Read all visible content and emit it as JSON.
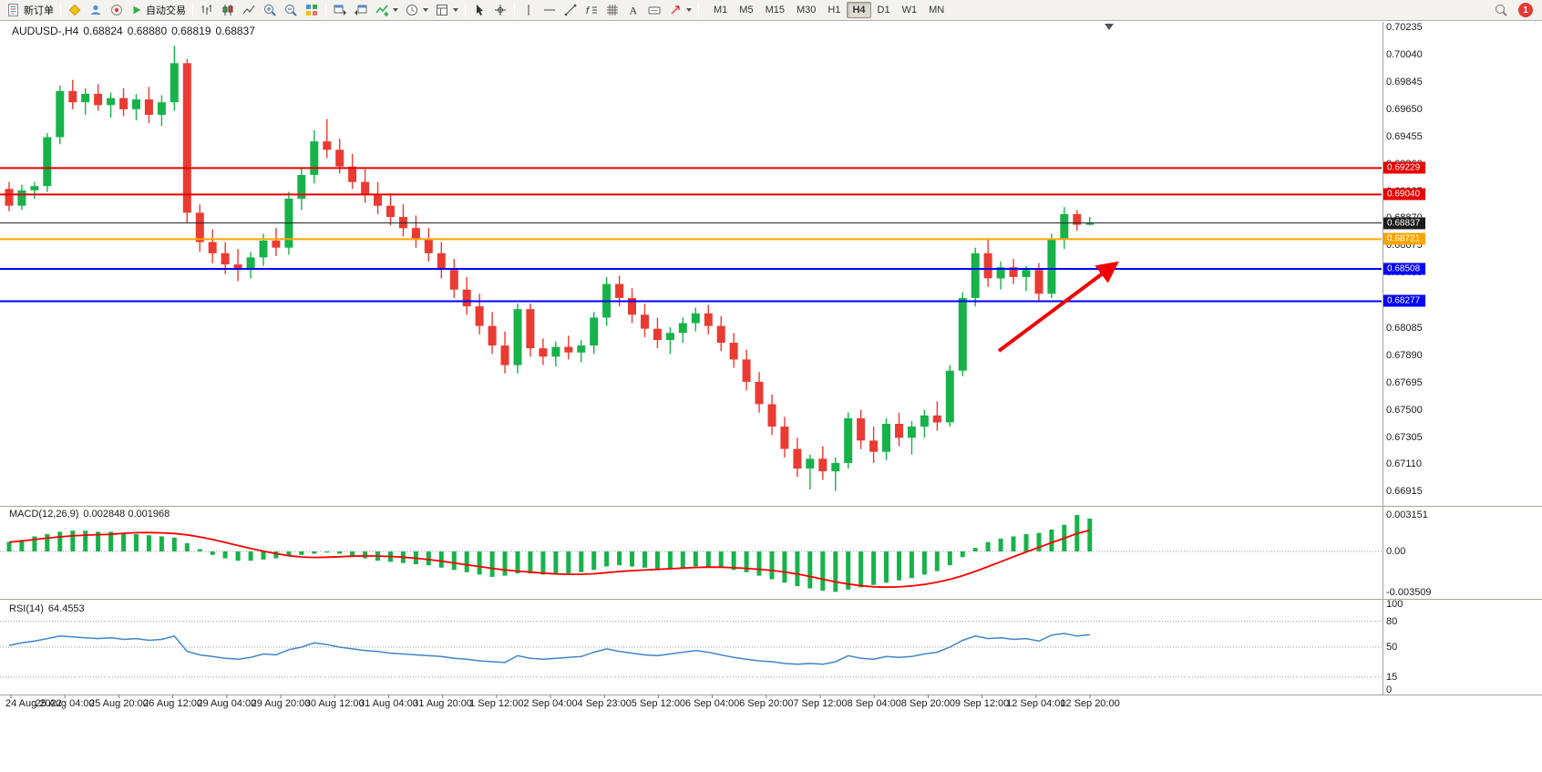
{
  "window": {
    "app_title": "MetaTrader",
    "accent_colors": {
      "bull": "#18b24b",
      "bear": "#ea3b32",
      "rsi_line": "#3f86c9",
      "macd_signal": "#ff0000",
      "macd_histogram": "#18b24b"
    }
  },
  "toolbar": {
    "new_order_label": "新订单",
    "autotrading_label": "自动交易",
    "timeframes": [
      "M1",
      "M5",
      "M15",
      "M30",
      "H1",
      "H4",
      "D1",
      "W1",
      "MN"
    ],
    "active_timeframe": "H4",
    "notification_count": "1"
  },
  "chart": {
    "header": {
      "symbol": "AUDUSD-,H4",
      "open": "0.68824",
      "high": "0.68880",
      "low": "0.68819",
      "close": "0.68837"
    },
    "price_axis_ticks": [
      "0.70235",
      "0.70040",
      "0.69845",
      "0.69650",
      "0.69455",
      "0.69260",
      "0.69065",
      "0.68870",
      "0.68675",
      "0.68480",
      "0.68285",
      "0.68085",
      "0.67890",
      "0.67695",
      "0.67500",
      "0.67305",
      "0.67110",
      "0.66915"
    ],
    "levels": [
      {
        "label": "0.69229",
        "price": 0.69229,
        "color": "#e60000",
        "kind": "resistance"
      },
      {
        "label": "0.69040",
        "price": 0.6904,
        "color": "#e60000",
        "kind": "resistance"
      },
      {
        "label": "0.68837",
        "price": 0.68837,
        "color": "#1c1c1c",
        "kind": "current-price"
      },
      {
        "label": "0.68721",
        "price": 0.68721,
        "color": "#ffa500",
        "kind": "pivot"
      },
      {
        "label": "0.68508",
        "price": 0.68508,
        "color": "#0000ff",
        "kind": "support"
      },
      {
        "label": "0.68277",
        "price": 0.68277,
        "color": "#0000ff",
        "kind": "support"
      }
    ],
    "time_axis": [
      "24 Aug 2022",
      "25 Aug 04:00",
      "25 Aug 20:00",
      "26 Aug 12:00",
      "29 Aug 04:00",
      "29 Aug 20:00",
      "30 Aug 12:00",
      "31 Aug 04:00",
      "31 Aug 20:00",
      "1 Sep 12:00",
      "2 Sep 04:00",
      "4 Sep 23:00",
      "5 Sep 12:00",
      "6 Sep 04:00",
      "6 Sep 20:00",
      "7 Sep 12:00",
      "8 Sep 04:00",
      "8 Sep 20:00",
      "9 Sep 12:00",
      "12 Sep 04:00",
      "12 Sep 20:00"
    ],
    "annotation_arrow": {
      "color": "#f00000",
      "direction": "up-right"
    }
  },
  "macd": {
    "label": "MACD(12,26,9)",
    "values": "0.002848 0.001968",
    "axis": [
      {
        "label": "0.003151",
        "value": 0.003151
      },
      {
        "label": "0.00",
        "value": 0
      },
      {
        "label": "-0.003509",
        "value": -0.003509
      }
    ]
  },
  "rsi": {
    "label": "RSI(14)",
    "value": "64.4553",
    "axis": [
      {
        "label": "100",
        "value": 100
      },
      {
        "label": "80",
        "value": 80
      },
      {
        "label": "50",
        "value": 50
      },
      {
        "label": "15",
        "value": 15
      },
      {
        "label": "0",
        "value": 0
      }
    ],
    "levels": [
      80,
      50,
      15
    ]
  },
  "chart_data": {
    "type": "candlestick",
    "symbol": "AUDUSD",
    "timeframe": "H4",
    "price_range": {
      "top": 0.70262,
      "bottom": 0.66826
    },
    "candles": [
      [
        0.6908,
        0.6913,
        0.6892,
        0.6896
      ],
      [
        0.6896,
        0.6911,
        0.6893,
        0.6907
      ],
      [
        0.6907,
        0.6913,
        0.6901,
        0.691
      ],
      [
        0.691,
        0.6948,
        0.6906,
        0.6945
      ],
      [
        0.6945,
        0.6982,
        0.694,
        0.6978
      ],
      [
        0.6978,
        0.6986,
        0.6965,
        0.697
      ],
      [
        0.697,
        0.698,
        0.6961,
        0.6976
      ],
      [
        0.6976,
        0.6983,
        0.6964,
        0.6968
      ],
      [
        0.6968,
        0.6977,
        0.6959,
        0.6973
      ],
      [
        0.6973,
        0.698,
        0.696,
        0.6965
      ],
      [
        0.6965,
        0.6976,
        0.6957,
        0.6972
      ],
      [
        0.6972,
        0.6981,
        0.6955,
        0.6961
      ],
      [
        0.6961,
        0.6975,
        0.6953,
        0.697
      ],
      [
        0.697,
        0.70103,
        0.6964,
        0.6998
      ],
      [
        0.6998,
        0.7001,
        0.6884,
        0.6891
      ],
      [
        0.6891,
        0.6897,
        0.6863,
        0.687
      ],
      [
        0.687,
        0.6879,
        0.6855,
        0.6862
      ],
      [
        0.6862,
        0.687,
        0.6847,
        0.6854
      ],
      [
        0.6854,
        0.6865,
        0.6842,
        0.685
      ],
      [
        0.685,
        0.6863,
        0.6844,
        0.6859
      ],
      [
        0.6859,
        0.6876,
        0.6853,
        0.6871
      ],
      [
        0.6871,
        0.688,
        0.686,
        0.6866
      ],
      [
        0.6866,
        0.6906,
        0.6861,
        0.6901
      ],
      [
        0.6901,
        0.6923,
        0.6893,
        0.6918
      ],
      [
        0.6918,
        0.695,
        0.6912,
        0.6942
      ],
      [
        0.6942,
        0.6958,
        0.693,
        0.6936
      ],
      [
        0.6936,
        0.6944,
        0.6919,
        0.6924
      ],
      [
        0.6924,
        0.6933,
        0.6908,
        0.6913
      ],
      [
        0.6913,
        0.6922,
        0.6898,
        0.6904
      ],
      [
        0.6904,
        0.6913,
        0.689,
        0.6896
      ],
      [
        0.6896,
        0.6905,
        0.6882,
        0.6888
      ],
      [
        0.6888,
        0.6897,
        0.6874,
        0.688
      ],
      [
        0.688,
        0.6889,
        0.6866,
        0.6872
      ],
      [
        0.6872,
        0.688,
        0.6856,
        0.6862
      ],
      [
        0.6862,
        0.687,
        0.6844,
        0.685
      ],
      [
        0.685,
        0.6858,
        0.683,
        0.6836
      ],
      [
        0.6836,
        0.6845,
        0.6818,
        0.6824
      ],
      [
        0.6824,
        0.6833,
        0.6804,
        0.681
      ],
      [
        0.681,
        0.682,
        0.679,
        0.6796
      ],
      [
        0.6796,
        0.6806,
        0.6776,
        0.6782
      ],
      [
        0.6782,
        0.6826,
        0.6776,
        0.6822
      ],
      [
        0.6822,
        0.6826,
        0.6788,
        0.6794
      ],
      [
        0.6794,
        0.6801,
        0.6782,
        0.6788
      ],
      [
        0.6788,
        0.6799,
        0.6781,
        0.6795
      ],
      [
        0.6795,
        0.6803,
        0.6786,
        0.6791
      ],
      [
        0.6791,
        0.68,
        0.6784,
        0.6796
      ],
      [
        0.6796,
        0.682,
        0.679,
        0.6816
      ],
      [
        0.6816,
        0.6845,
        0.681,
        0.684
      ],
      [
        0.684,
        0.6846,
        0.6824,
        0.683
      ],
      [
        0.683,
        0.6837,
        0.6812,
        0.6818
      ],
      [
        0.6818,
        0.6826,
        0.6802,
        0.6808
      ],
      [
        0.6808,
        0.6816,
        0.6794,
        0.68
      ],
      [
        0.68,
        0.6809,
        0.679,
        0.6805
      ],
      [
        0.6805,
        0.6816,
        0.6798,
        0.6812
      ],
      [
        0.6812,
        0.6823,
        0.6806,
        0.6819
      ],
      [
        0.6819,
        0.6825,
        0.6804,
        0.681
      ],
      [
        0.681,
        0.6817,
        0.6792,
        0.6798
      ],
      [
        0.6798,
        0.6805,
        0.678,
        0.6786
      ],
      [
        0.6786,
        0.6793,
        0.6764,
        0.677
      ],
      [
        0.677,
        0.6777,
        0.6748,
        0.6754
      ],
      [
        0.6754,
        0.6761,
        0.6732,
        0.6738
      ],
      [
        0.6738,
        0.6745,
        0.6716,
        0.6722
      ],
      [
        0.6722,
        0.673,
        0.6702,
        0.6708
      ],
      [
        0.6708,
        0.6718,
        0.6693,
        0.6715
      ],
      [
        0.6715,
        0.6724,
        0.67,
        0.6706
      ],
      [
        0.6706,
        0.6716,
        0.6692,
        0.6712
      ],
      [
        0.6712,
        0.6748,
        0.6708,
        0.6744
      ],
      [
        0.6744,
        0.675,
        0.6722,
        0.6728
      ],
      [
        0.6728,
        0.6738,
        0.6712,
        0.672
      ],
      [
        0.672,
        0.6744,
        0.6714,
        0.674
      ],
      [
        0.674,
        0.6748,
        0.6724,
        0.673
      ],
      [
        0.673,
        0.6742,
        0.6718,
        0.6738
      ],
      [
        0.6738,
        0.675,
        0.673,
        0.6746
      ],
      [
        0.6746,
        0.6756,
        0.6735,
        0.6741
      ],
      [
        0.6741,
        0.6782,
        0.6738,
        0.6778
      ],
      [
        0.6778,
        0.6834,
        0.6774,
        0.683
      ],
      [
        0.683,
        0.6866,
        0.6824,
        0.6862
      ],
      [
        0.6862,
        0.6872,
        0.6838,
        0.6844
      ],
      [
        0.6844,
        0.6856,
        0.6836,
        0.6852
      ],
      [
        0.6852,
        0.6858,
        0.684,
        0.6845
      ],
      [
        0.6845,
        0.6853,
        0.6835,
        0.685
      ],
      [
        0.685,
        0.6855,
        0.6828,
        0.6833
      ],
      [
        0.6833,
        0.6876,
        0.683,
        0.6872
      ],
      [
        0.6872,
        0.6895,
        0.6865,
        0.689
      ],
      [
        0.689,
        0.6893,
        0.6878,
        0.68824
      ],
      [
        0.68824,
        0.6888,
        0.68819,
        0.68837
      ]
    ],
    "macd_histogram": [
      0.0008,
      0.001,
      0.0013,
      0.0015,
      0.0017,
      0.0018,
      0.0018,
      0.0017,
      0.0017,
      0.0016,
      0.0015,
      0.0014,
      0.0013,
      0.0012,
      0.0007,
      0.0002,
      -0.0003,
      -0.0006,
      -0.0008,
      -0.0008,
      -0.0007,
      -0.0006,
      -0.0004,
      -0.0003,
      -0.0002,
      -0.0001,
      -0.0002,
      -0.0004,
      -0.0006,
      -0.0008,
      -0.0009,
      -0.001,
      -0.0011,
      -0.0012,
      -0.0014,
      -0.0016,
      -0.0018,
      -0.002,
      -0.0022,
      -0.0021,
      -0.0019,
      -0.0019,
      -0.002,
      -0.002,
      -0.0019,
      -0.0018,
      -0.0016,
      -0.0013,
      -0.0012,
      -0.0013,
      -0.0014,
      -0.0015,
      -0.0015,
      -0.0014,
      -0.0013,
      -0.0013,
      -0.0014,
      -0.0016,
      -0.0018,
      -0.0021,
      -0.0024,
      -0.0027,
      -0.003,
      -0.0032,
      -0.0034,
      -0.0035,
      -0.0033,
      -0.0031,
      -0.0029,
      -0.0027,
      -0.0025,
      -0.0023,
      -0.002,
      -0.0017,
      -0.0012,
      -0.0005,
      0.0003,
      0.0008,
      0.0011,
      0.0013,
      0.0015,
      0.0016,
      0.0019,
      0.0023,
      0.003151,
      0.002848
    ],
    "rsi_values": [
      52,
      55,
      57,
      60,
      63,
      62,
      61,
      60,
      61,
      59,
      60,
      58,
      59,
      63,
      45,
      41,
      39,
      37,
      36,
      38,
      42,
      41,
      47,
      50,
      55,
      53,
      50,
      48,
      46,
      45,
      43,
      42,
      41,
      40,
      39,
      37,
      36,
      34,
      33,
      32,
      40,
      37,
      36,
      37,
      38,
      39,
      44,
      48,
      45,
      43,
      41,
      40,
      42,
      44,
      46,
      44,
      41,
      38,
      36,
      34,
      33,
      31,
      30,
      31,
      30,
      33,
      40,
      37,
      36,
      39,
      38,
      39,
      42,
      44,
      50,
      58,
      63,
      60,
      61,
      59,
      60,
      57,
      64,
      66,
      63,
      64.46
    ]
  }
}
